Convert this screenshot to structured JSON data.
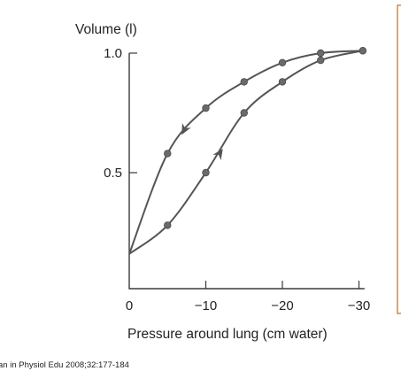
{
  "chart_data": {
    "type": "line",
    "title": "",
    "xlabel": "Pressure around lung (cm water)",
    "ylabel": "Volume (l)",
    "xlim": [
      0,
      -31
    ],
    "ylim": [
      0.1,
      1.08
    ],
    "x_ticks": [
      0,
      -10,
      -20,
      -30
    ],
    "x_tick_labels": [
      "0",
      "−10",
      "−20",
      "−30"
    ],
    "y_ticks": [
      1.0,
      0.5
    ],
    "y_tick_labels": [
      "1.0",
      "0.5"
    ],
    "grid": false,
    "legend": "none",
    "series": [
      {
        "role": "upper",
        "points": [
          [
            0,
            0.16
          ],
          [
            -5,
            0.58
          ],
          [
            -10,
            0.77
          ],
          [
            -15,
            0.88
          ],
          [
            -20,
            0.96
          ],
          [
            -25,
            1.0
          ],
          [
            -30.5,
            1.01
          ]
        ],
        "arrow": {
          "x": -7.2,
          "y": 0.68,
          "direction": "toward-origin"
        }
      },
      {
        "role": "lower",
        "points": [
          [
            0,
            0.16
          ],
          [
            -5,
            0.28
          ],
          [
            -10,
            0.5
          ],
          [
            -15,
            0.75
          ],
          [
            -20,
            0.88
          ],
          [
            -25,
            0.97
          ],
          [
            -30.5,
            1.01
          ]
        ],
        "arrow": {
          "x": -11.8,
          "y": 0.58,
          "direction": "away-from-origin"
        }
      }
    ]
  },
  "citation": "an in Physiol Edu 2008;32:177-184",
  "colors": {
    "curve": "#555555",
    "point": "#6a6a6a",
    "panel_border": "#d98a3a"
  }
}
